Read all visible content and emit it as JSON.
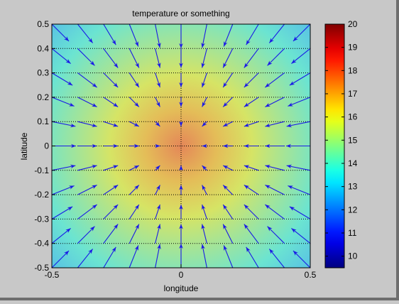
{
  "chart_data": [
    {
      "type": "heatmap",
      "title": "temperature or something",
      "xlabel": "longitude",
      "ylabel": "latitude",
      "xlim": [
        -0.5,
        0.5
      ],
      "ylim": [
        -0.5,
        0.5
      ],
      "x_ticks": [
        "-0.5",
        "0",
        "0.5"
      ],
      "y_ticks": [
        "-0.5",
        "-0.4",
        "-0.3",
        "-0.2",
        "-0.1",
        "0",
        "0.1",
        "0.2",
        "0.3",
        "0.4",
        "0.5"
      ],
      "grid": true,
      "colormap": "jet",
      "clim": [
        9.5,
        20
      ],
      "colorbar_ticks": [
        "10",
        "11",
        "12",
        "13",
        "14",
        "15",
        "16",
        "17",
        "18",
        "19",
        "20"
      ],
      "field": {
        "peak_value": 17.8,
        "peak_at": [
          0,
          0
        ],
        "corner_value": 12.8,
        "shape": "radial"
      },
      "quiver": {
        "x": [
          -0.5,
          -0.4,
          -0.3,
          -0.2,
          -0.1,
          0,
          0.1,
          0.2,
          0.3,
          0.4,
          0.5
        ],
        "y": [
          -0.5,
          -0.4,
          -0.3,
          -0.2,
          -0.1,
          0,
          0.1,
          0.2,
          0.3,
          0.4,
          0.5
        ],
        "direction": "toward origin",
        "color": "#1a1ae6"
      }
    }
  ]
}
